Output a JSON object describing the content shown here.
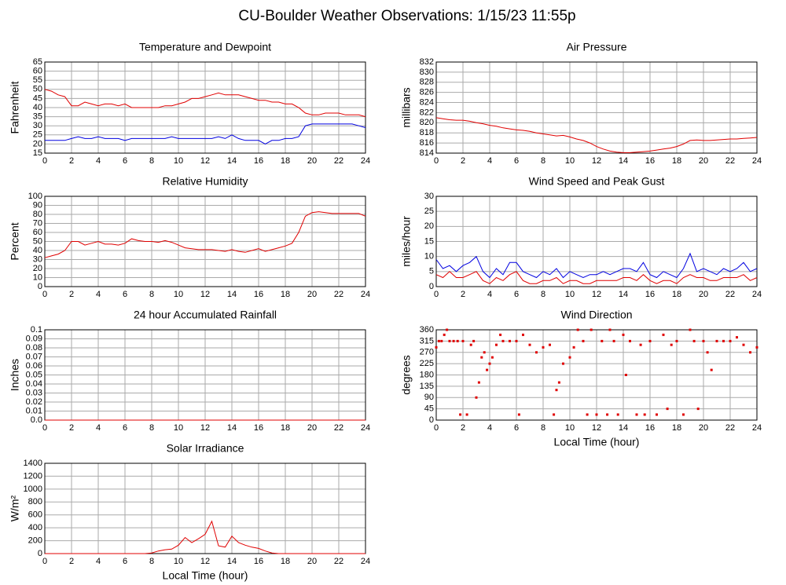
{
  "title": "CU-Boulder Weather Observations: 1/15/23 11:55p",
  "chart_data": [
    {
      "type": "line",
      "title": "Temperature and Dewpoint",
      "ylabel": "Fahrenheit",
      "x": [
        0,
        0.5,
        1,
        1.5,
        2,
        2.5,
        3,
        3.5,
        4,
        4.5,
        5,
        5.5,
        6,
        6.5,
        7,
        7.5,
        8,
        8.5,
        9,
        9.5,
        10,
        10.5,
        11,
        11.5,
        12,
        12.5,
        13,
        13.5,
        14,
        14.5,
        15,
        15.5,
        16,
        16.5,
        17,
        17.5,
        18,
        18.5,
        19,
        19.5,
        20,
        20.5,
        21,
        21.5,
        22,
        22.5,
        23,
        23.5,
        24
      ],
      "series": [
        {
          "color": "#e00000",
          "values": [
            50,
            49,
            47,
            46,
            41,
            41,
            43,
            42,
            41,
            42,
            42,
            41,
            42,
            40,
            40,
            40,
            40,
            40,
            41,
            41,
            42,
            43,
            45,
            45,
            46,
            47,
            48,
            47,
            47,
            47,
            46,
            45,
            44,
            44,
            43,
            43,
            42,
            42,
            40,
            37,
            36,
            36,
            37,
            37,
            37,
            36,
            36,
            36,
            35
          ]
        },
        {
          "color": "#0000e0",
          "values": [
            22,
            22,
            22,
            22,
            23,
            24,
            23,
            23,
            24,
            23,
            23,
            23,
            22,
            23,
            23,
            23,
            23,
            23,
            23,
            24,
            23,
            23,
            23,
            23,
            23,
            23,
            24,
            23,
            25,
            23,
            22,
            22,
            22,
            20,
            22,
            22,
            23,
            23,
            24,
            30,
            31,
            31,
            31,
            31,
            31,
            31,
            31,
            30,
            29
          ]
        }
      ],
      "xlim": [
        0,
        24
      ],
      "xticks": [
        0,
        2,
        4,
        6,
        8,
        10,
        12,
        14,
        16,
        18,
        20,
        22,
        24
      ],
      "ylim": [
        15,
        65
      ],
      "yticks": [
        15,
        20,
        25,
        30,
        35,
        40,
        45,
        50,
        55,
        60,
        65
      ],
      "grid": true
    },
    {
      "type": "line",
      "title": "Air Pressure",
      "ylabel": "millibars",
      "x": [
        0,
        0.5,
        1,
        1.5,
        2,
        2.5,
        3,
        3.5,
        4,
        4.5,
        5,
        5.5,
        6,
        6.5,
        7,
        7.5,
        8,
        8.5,
        9,
        9.5,
        10,
        10.5,
        11,
        11.5,
        12,
        12.5,
        13,
        13.5,
        14,
        14.5,
        15,
        15.5,
        16,
        16.5,
        17,
        17.5,
        18,
        18.5,
        19,
        19.5,
        20,
        20.5,
        21,
        21.5,
        22,
        22.5,
        23,
        23.5,
        24
      ],
      "series": [
        {
          "color": "#e00000",
          "values": [
            821,
            820.8,
            820.6,
            820.5,
            820.5,
            820.3,
            820,
            819.8,
            819.5,
            819.3,
            819,
            818.8,
            818.6,
            818.5,
            818.3,
            818,
            817.8,
            817.6,
            817.4,
            817.5,
            817.2,
            816.8,
            816.5,
            816,
            815.3,
            814.8,
            814.4,
            814.2,
            814.1,
            814.1,
            814.2,
            814.3,
            814.4,
            814.6,
            814.8,
            815,
            815.3,
            815.8,
            816.5,
            816.6,
            816.5,
            816.5,
            816.6,
            816.7,
            816.8,
            816.8,
            816.9,
            817,
            817.1
          ]
        }
      ],
      "xlim": [
        0,
        24
      ],
      "xticks": [
        0,
        2,
        4,
        6,
        8,
        10,
        12,
        14,
        16,
        18,
        20,
        22,
        24
      ],
      "ylim": [
        814,
        832
      ],
      "yticks": [
        814,
        816,
        818,
        820,
        822,
        824,
        826,
        828,
        830,
        832
      ],
      "grid": true
    },
    {
      "type": "line",
      "title": "Relative Humidity",
      "ylabel": "Percent",
      "x": [
        0,
        0.5,
        1,
        1.5,
        2,
        2.5,
        3,
        3.5,
        4,
        4.5,
        5,
        5.5,
        6,
        6.5,
        7,
        7.5,
        8,
        8.5,
        9,
        9.5,
        10,
        10.5,
        11,
        11.5,
        12,
        12.5,
        13,
        13.5,
        14,
        14.5,
        15,
        15.5,
        16,
        16.5,
        17,
        17.5,
        18,
        18.5,
        19,
        19.5,
        20,
        20.5,
        21,
        21.5,
        22,
        22.5,
        23,
        23.5,
        24
      ],
      "series": [
        {
          "color": "#e00000",
          "values": [
            32,
            34,
            36,
            40,
            50,
            50,
            46,
            48,
            50,
            47,
            47,
            46,
            48,
            53,
            51,
            50,
            50,
            49,
            51,
            49,
            46,
            43,
            42,
            41,
            41,
            41,
            40,
            39,
            41,
            39,
            38,
            40,
            42,
            39,
            41,
            43,
            45,
            48,
            60,
            78,
            82,
            83,
            82,
            81,
            81,
            81,
            81,
            81,
            78
          ]
        }
      ],
      "xlim": [
        0,
        24
      ],
      "xticks": [
        0,
        2,
        4,
        6,
        8,
        10,
        12,
        14,
        16,
        18,
        20,
        22,
        24
      ],
      "ylim": [
        0,
        100
      ],
      "yticks": [
        0,
        10,
        20,
        30,
        40,
        50,
        60,
        70,
        80,
        90,
        100
      ],
      "grid": true
    },
    {
      "type": "line",
      "title": "Wind Speed and Peak Gust",
      "ylabel": "miles/hour",
      "x": [
        0,
        0.5,
        1,
        1.5,
        2,
        2.5,
        3,
        3.5,
        4,
        4.5,
        5,
        5.5,
        6,
        6.5,
        7,
        7.5,
        8,
        8.5,
        9,
        9.5,
        10,
        10.5,
        11,
        11.5,
        12,
        12.5,
        13,
        13.5,
        14,
        14.5,
        15,
        15.5,
        16,
        16.5,
        17,
        17.5,
        18,
        18.5,
        19,
        19.5,
        20,
        20.5,
        21,
        21.5,
        22,
        22.5,
        23,
        23.5,
        24
      ],
      "series": [
        {
          "color": "#0000e0",
          "values": [
            9,
            6,
            7,
            5,
            7,
            8,
            10,
            5,
            3,
            6,
            4,
            8,
            8,
            5,
            4,
            3,
            5,
            4,
            6,
            3,
            5,
            4,
            3,
            4,
            4,
            5,
            4,
            5,
            6,
            6,
            5,
            8,
            4,
            3,
            5,
            4,
            3,
            6,
            11,
            5,
            6,
            5,
            4,
            6,
            5,
            6,
            8,
            5,
            6
          ]
        },
        {
          "color": "#e00000",
          "values": [
            4,
            3,
            5,
            3,
            3,
            4,
            5,
            2,
            1,
            3,
            2,
            4,
            5,
            2,
            1,
            1,
            2,
            2,
            3,
            1,
            2,
            2,
            1,
            1,
            2,
            2,
            2,
            2,
            3,
            3,
            2,
            4,
            2,
            1,
            2,
            2,
            1,
            3,
            4,
            3,
            3,
            2,
            2,
            3,
            3,
            3,
            4,
            2,
            3
          ]
        }
      ],
      "xlim": [
        0,
        24
      ],
      "xticks": [
        0,
        2,
        4,
        6,
        8,
        10,
        12,
        14,
        16,
        18,
        20,
        22,
        24
      ],
      "ylim": [
        0,
        30
      ],
      "yticks": [
        0,
        5,
        10,
        15,
        20,
        25,
        30
      ],
      "grid": true
    },
    {
      "type": "line",
      "title": "24 hour Accumulated Rainfall",
      "ylabel": "Inches",
      "x": [
        0,
        24
      ],
      "series": [
        {
          "color": "#e00000",
          "values": [
            0,
            0
          ]
        }
      ],
      "xlim": [
        0,
        24
      ],
      "xticks": [
        0,
        2,
        4,
        6,
        8,
        10,
        12,
        14,
        16,
        18,
        20,
        22,
        24
      ],
      "ylim": [
        0,
        0.1
      ],
      "yticks": [
        {
          "value": 0,
          "label": "0.0"
        },
        0.01,
        0.02,
        0.03,
        0.04,
        0.05,
        0.06,
        0.07,
        0.08,
        0.09,
        0.1
      ],
      "grid": true
    },
    {
      "type": "scatter",
      "title": "Wind Direction",
      "ylabel": "degrees",
      "xlabel": "Local Time (hour)",
      "x": [
        0,
        0.2,
        0.4,
        0.6,
        0.8,
        1,
        1.3,
        1.6,
        1.8,
        2,
        2.3,
        2.6,
        2.8,
        3,
        3.2,
        3.4,
        3.6,
        3.8,
        4,
        4.2,
        4.5,
        4.8,
        5,
        5.5,
        6,
        6.2,
        6.5,
        7,
        7.5,
        8,
        8.5,
        8.8,
        9,
        9.2,
        9.5,
        10,
        10.3,
        10.6,
        11,
        11.3,
        11.6,
        12,
        12.4,
        12.8,
        13,
        13.3,
        13.6,
        14,
        14.2,
        14.5,
        15,
        15.3,
        15.6,
        16,
        16.5,
        17,
        17.3,
        17.6,
        18,
        18.5,
        19,
        19.3,
        19.6,
        20,
        20.3,
        20.6,
        21,
        21.5,
        22,
        22.5,
        23,
        23.5,
        24
      ],
      "series": [
        {
          "color": "#e00000",
          "values": [
            290,
            315,
            315,
            340,
            360,
            315,
            315,
            315,
            22,
            315,
            22,
            300,
            315,
            90,
            150,
            250,
            270,
            200,
            225,
            250,
            300,
            340,
            315,
            315,
            315,
            22,
            340,
            300,
            270,
            290,
            300,
            22,
            120,
            150,
            225,
            250,
            290,
            360,
            315,
            22,
            360,
            22,
            315,
            22,
            360,
            315,
            22,
            340,
            180,
            315,
            22,
            300,
            22,
            315,
            22,
            340,
            45,
            300,
            315,
            22,
            360,
            315,
            45,
            315,
            270,
            200,
            315,
            315,
            315,
            330,
            300,
            270,
            290
          ]
        }
      ],
      "xlim": [
        0,
        24
      ],
      "xticks": [
        0,
        2,
        4,
        6,
        8,
        10,
        12,
        14,
        16,
        18,
        20,
        22,
        24
      ],
      "ylim": [
        0,
        360
      ],
      "yticks": [
        0,
        45,
        90,
        135,
        180,
        225,
        270,
        315,
        360
      ],
      "grid": true
    },
    {
      "type": "line",
      "title": "Solar Irradiance",
      "ylabel": "W/m²",
      "xlabel": "Local Time (hour)",
      "x": [
        0,
        0.5,
        1,
        1.5,
        2,
        2.5,
        3,
        3.5,
        4,
        4.5,
        5,
        5.5,
        6,
        6.5,
        7,
        7.5,
        8,
        8.5,
        9,
        9.5,
        10,
        10.5,
        11,
        11.5,
        12,
        12.5,
        13,
        13.5,
        14,
        14.5,
        15,
        15.5,
        16,
        16.5,
        17,
        17.5,
        18,
        18.5,
        19,
        19.5,
        20,
        20.5,
        21,
        21.5,
        22,
        22.5,
        23,
        23.5,
        24
      ],
      "series": [
        {
          "color": "#e00000",
          "values": [
            0,
            0,
            0,
            0,
            0,
            0,
            0,
            0,
            0,
            0,
            0,
            0,
            0,
            0,
            0,
            0,
            10,
            40,
            60,
            70,
            130,
            250,
            170,
            230,
            300,
            500,
            120,
            100,
            270,
            170,
            130,
            100,
            80,
            40,
            10,
            0,
            0,
            0,
            0,
            0,
            0,
            0,
            0,
            0,
            0,
            0,
            0,
            0,
            0
          ]
        }
      ],
      "xlim": [
        0,
        24
      ],
      "xticks": [
        0,
        2,
        4,
        6,
        8,
        10,
        12,
        14,
        16,
        18,
        20,
        22,
        24
      ],
      "ylim": [
        0,
        1400
      ],
      "yticks": [
        0,
        200,
        400,
        600,
        800,
        1000,
        1200,
        1400
      ],
      "grid": true
    }
  ]
}
